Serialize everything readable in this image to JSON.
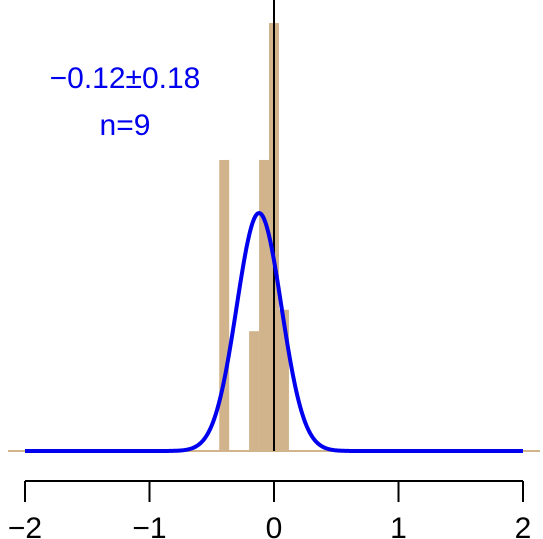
{
  "chart_data": {
    "type": "bar",
    "title": "",
    "xlabel": "",
    "ylabel": "",
    "xlim": [
      -2,
      2
    ],
    "ylim": [
      0,
      1
    ],
    "xticks": [
      -2,
      -1,
      0,
      1,
      2
    ],
    "xtick_labels": [
      "−2",
      "−1",
      "0",
      "1",
      "2"
    ],
    "vertical_line_x": 0,
    "histogram": {
      "bins": [
        {
          "x0": -0.44,
          "x1": -0.36,
          "value": 0.68
        },
        {
          "x0": -0.2,
          "x1": -0.12,
          "value": 0.28
        },
        {
          "x0": -0.12,
          "x1": -0.04,
          "value": 0.68
        },
        {
          "x0": -0.04,
          "x1": 0.04,
          "value": 1.0
        },
        {
          "x0": 0.04,
          "x1": 0.12,
          "value": 0.33
        }
      ]
    },
    "density_curve": {
      "distribution": "normal",
      "mean": -0.12,
      "sd": 0.18,
      "peak_value": 0.556
    },
    "annotations": {
      "estimate": "−0.12±0.18",
      "n": "n=9"
    }
  },
  "colors": {
    "bars": "#d2b48c",
    "curve": "#0000ee",
    "axis": "#000000",
    "baseline": "#d2b48c"
  }
}
